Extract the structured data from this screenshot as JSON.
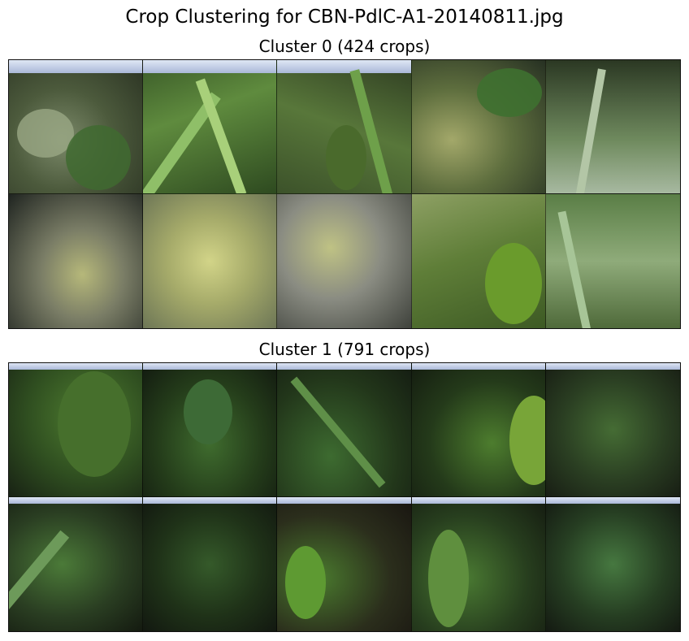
{
  "figure": {
    "title": "Crop Clustering for CBN-PdlC-A1-20140811.jpg"
  },
  "clusters": [
    {
      "title": "Cluster 0 (424 crops)",
      "crops": 10
    },
    {
      "title": "Cluster 1 (791 crops)",
      "crops": 10
    }
  ]
}
